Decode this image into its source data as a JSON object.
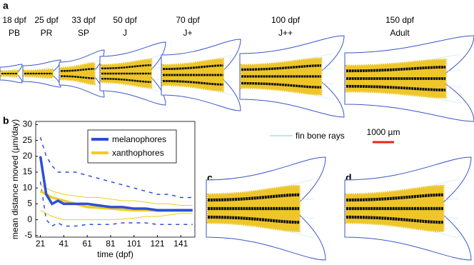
{
  "panel_labels": [
    "a",
    "b",
    "c",
    "d"
  ],
  "stages": [
    {
      "age": "18 dpf",
      "stage": "PB"
    },
    {
      "age": "25 dpf",
      "stage": "PR"
    },
    {
      "age": "33 dpf",
      "stage": "SP"
    },
    {
      "age": "50 dpf",
      "stage": "J"
    },
    {
      "age": "70 dpf",
      "stage": "J+"
    },
    {
      "age": "100 dpf",
      "stage": "J++"
    },
    {
      "age": "150 dpf",
      "stage": "Adult"
    }
  ],
  "fin_rays_label": "fin bone rays",
  "scale_bar_label": "1000 µm",
  "chart_data": {
    "type": "line",
    "x_label": "time (dpf)",
    "y_label": "mean distance moved (µm/day)",
    "x": [
      21,
      26,
      31,
      36,
      41,
      51,
      61,
      71,
      81,
      91,
      101,
      111,
      121,
      131,
      141,
      151
    ],
    "series": [
      {
        "name": "melanophores",
        "color": "#2b4fd8",
        "values": [
          20,
          8,
          5,
          6,
          5,
          5,
          5,
          4.5,
          4,
          4,
          3.5,
          3.5,
          3,
          3,
          3,
          3
        ],
        "upper": [
          26,
          20,
          17,
          15,
          15,
          15,
          14,
          13,
          12,
          11,
          10,
          9,
          8,
          8,
          7,
          7
        ],
        "lower": [
          12,
          0,
          -2,
          -1,
          -2,
          -2,
          -1.5,
          -1.5,
          -1.5,
          -1,
          -1,
          -1,
          -1.5,
          -1.5,
          -1.5,
          -1.5
        ]
      },
      {
        "name": "xanthophores",
        "color": "#f2cc1f",
        "values": [
          9,
          8,
          7,
          6.5,
          6,
          5,
          4,
          3.8,
          3.5,
          3.2,
          3,
          3,
          2.8,
          2.8,
          2.8,
          2.8
        ],
        "upper": [
          11,
          10,
          9,
          8.5,
          8,
          7.5,
          7,
          7,
          6.5,
          6,
          6,
          5.5,
          5,
          5,
          4.5,
          4.5
        ],
        "lower": [
          3,
          2,
          1,
          0.5,
          0,
          0,
          0,
          0,
          0,
          0.2,
          0.5,
          1,
          1,
          1.5,
          2,
          2
        ]
      }
    ],
    "xlim": [
      17,
      153
    ],
    "ylim": [
      -5.5,
      31
    ],
    "xticks": [
      21,
      41,
      61,
      81,
      101,
      121,
      141
    ],
    "yticks": [
      -5,
      0,
      5,
      10,
      15,
      20,
      25,
      30
    ]
  }
}
